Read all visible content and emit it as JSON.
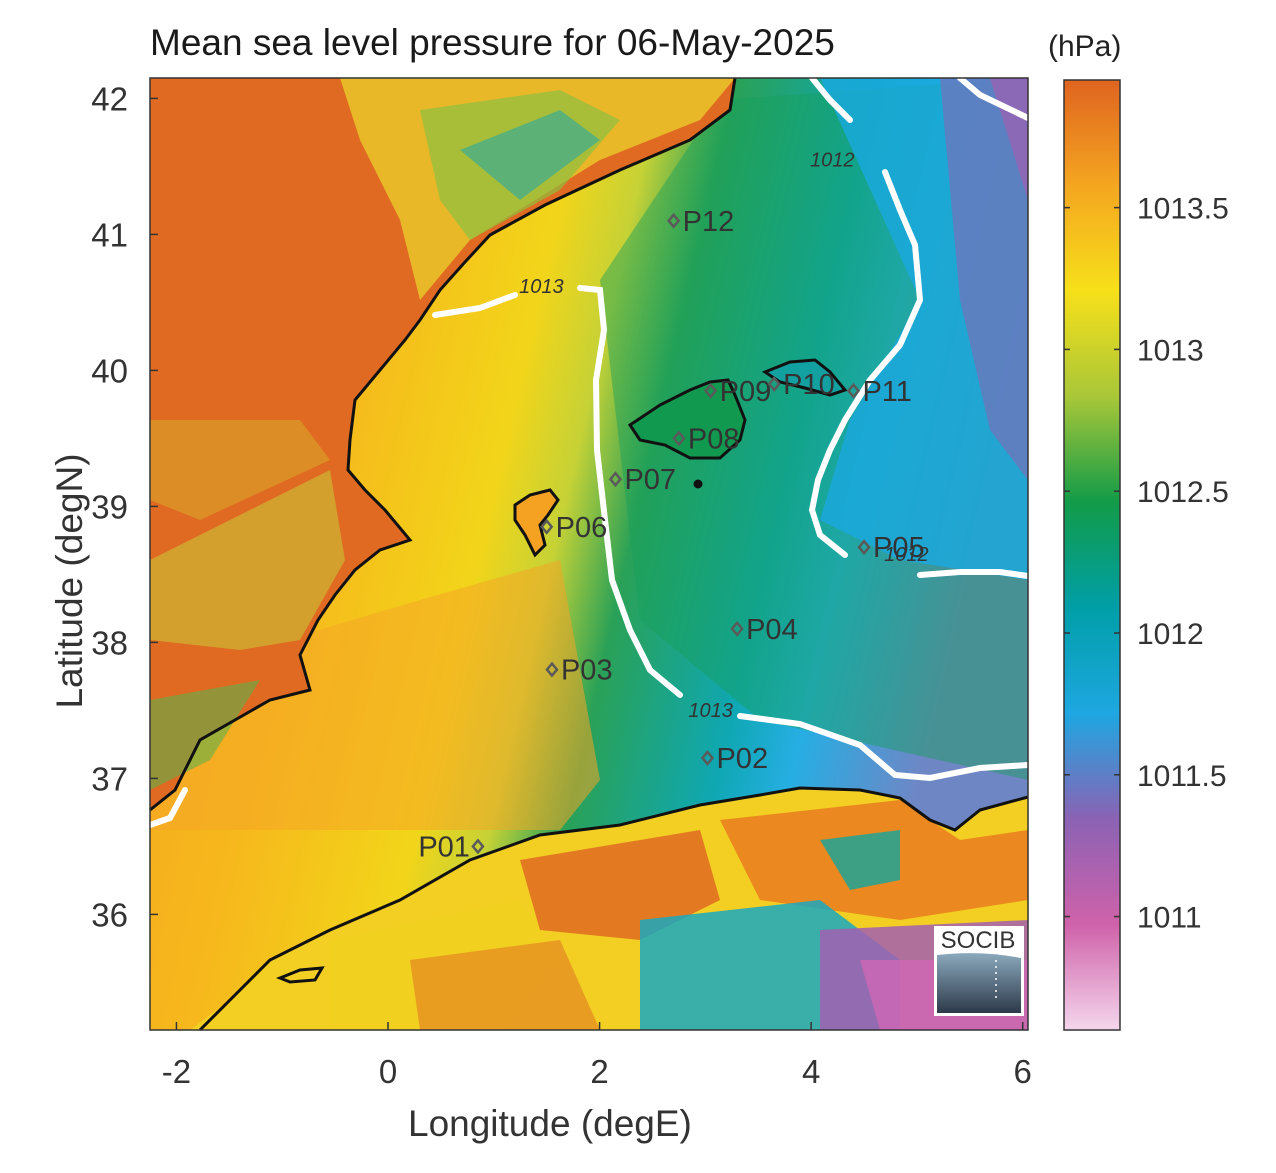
{
  "title": "Mean sea level pressure for 06-May-2025",
  "colorbar": {
    "unit": "(hPa)",
    "range": [
      1010.6,
      1013.95
    ],
    "ticks": [
      "1013.5",
      "1013",
      "1012.5",
      "1012",
      "1011.5",
      "1011"
    ],
    "tick_values": [
      1013.5,
      1013.0,
      1012.5,
      1012.0,
      1011.5,
      1011.0
    ],
    "colormap": [
      "#f4d6ec",
      "#cf62aa",
      "#8b62b4",
      "#1ea7e1",
      "#009fa8",
      "#129b48",
      "#a9c738",
      "#f7e01a",
      "#f4a620",
      "#df6420"
    ]
  },
  "axes": {
    "xlabel": "Longitude (degE)",
    "ylabel": "Latitude (degN)",
    "xlim": [
      -2.25,
      6.05
    ],
    "ylim": [
      35.15,
      42.15
    ],
    "xticks": [
      "-2",
      "0",
      "2",
      "4",
      "6"
    ],
    "xtick_values": [
      -2,
      0,
      2,
      4,
      6
    ],
    "yticks": [
      "42",
      "41",
      "40",
      "39",
      "38",
      "37",
      "36"
    ],
    "ytick_values": [
      42,
      41,
      40,
      39,
      38,
      37,
      36
    ]
  },
  "contours": [
    {
      "label": "1013",
      "labels_at": [
        [
          1.45,
          40.57
        ],
        [
          3.05,
          37.45
        ]
      ]
    },
    {
      "label": "1012",
      "labels_at": [
        [
          4.2,
          41.5
        ],
        [
          4.9,
          38.6
        ]
      ]
    }
  ],
  "stations": [
    {
      "id": "P01",
      "lon": 0.85,
      "lat": 36.5
    },
    {
      "id": "P02",
      "lon": 3.02,
      "lat": 37.15
    },
    {
      "id": "P03",
      "lon": 1.55,
      "lat": 37.8
    },
    {
      "id": "P04",
      "lon": 3.3,
      "lat": 38.1
    },
    {
      "id": "P05",
      "lon": 4.5,
      "lat": 38.7
    },
    {
      "id": "P06",
      "lon": 1.5,
      "lat": 38.85
    },
    {
      "id": "P07",
      "lon": 2.15,
      "lat": 39.2
    },
    {
      "id": "P08",
      "lon": 2.75,
      "lat": 39.5
    },
    {
      "id": "P09",
      "lon": 3.05,
      "lat": 39.85
    },
    {
      "id": "P10",
      "lon": 3.65,
      "lat": 39.9
    },
    {
      "id": "P11",
      "lon": 4.4,
      "lat": 39.85
    },
    {
      "id": "P12",
      "lon": 2.7,
      "lat": 41.1
    }
  ],
  "logo": {
    "text": "SOCIB"
  }
}
